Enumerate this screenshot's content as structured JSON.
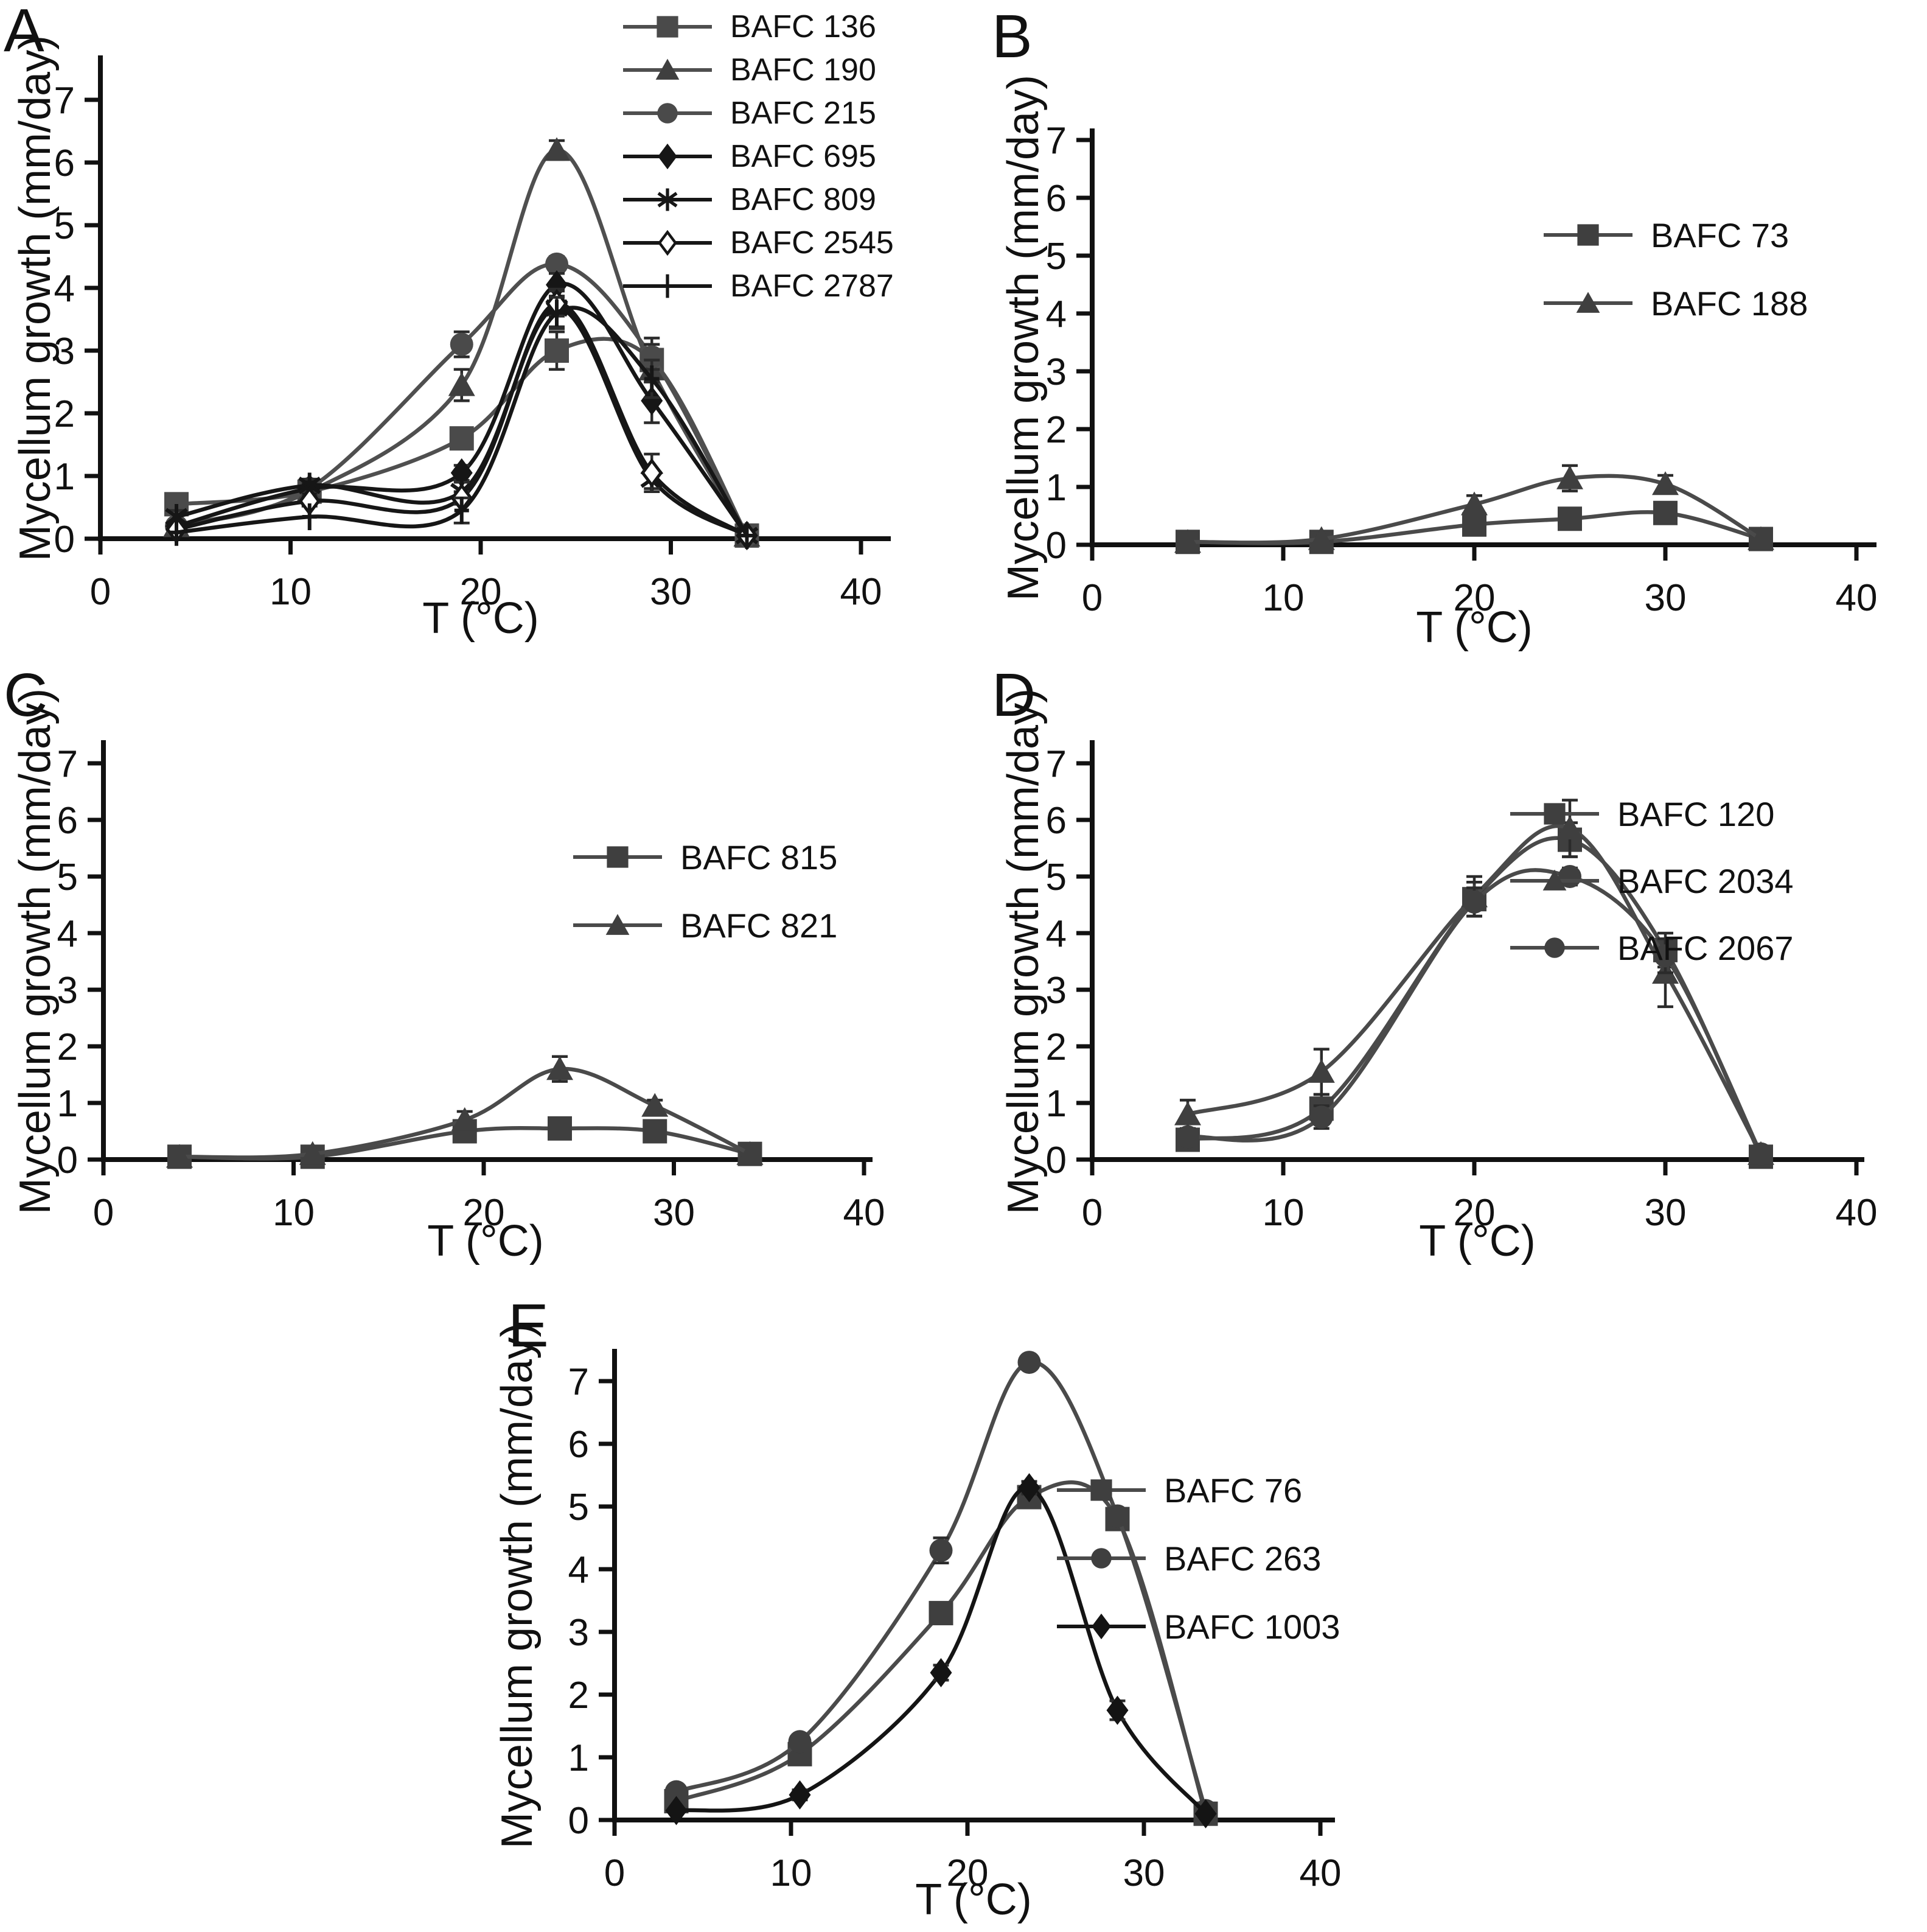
{
  "chart_data": [
    {
      "type": "line",
      "panel": "A",
      "xlabel": "T (°C)",
      "ylabel": "Mycellum growth (mm/day)",
      "xlim": [
        0,
        40
      ],
      "ylim": [
        0,
        7
      ],
      "x_ticks": [
        0,
        10,
        20,
        30,
        40
      ],
      "y_ticks": [
        0,
        1,
        2,
        3,
        4,
        5,
        6,
        7
      ],
      "grid": false,
      "legend_position": "top-right",
      "axis_color": "#111111",
      "x": [
        4,
        11,
        19,
        24,
        29,
        34
      ],
      "series": [
        {
          "name": "BAFC 136",
          "marker": "square",
          "color": "#4a4a4a",
          "line_color": "#4f4f4f",
          "values": [
            0.55,
            0.75,
            1.6,
            3.0,
            2.85,
            0.05
          ],
          "errors": [
            0.15,
            0.08,
            0.15,
            0.3,
            0.35,
            0.03
          ]
        },
        {
          "name": "BAFC 190",
          "marker": "triangle",
          "color": "#3f3f3f",
          "line_color": "#4f4f4f",
          "values": [
            0.2,
            0.75,
            2.45,
            6.2,
            2.7,
            0.05
          ],
          "errors": [
            0.05,
            0.08,
            0.25,
            0.15,
            0.2,
            0.03
          ]
        },
        {
          "name": "BAFC 215",
          "marker": "circle",
          "color": "#4a4a4a",
          "line_color": "#4f4f4f",
          "values": [
            0.2,
            0.8,
            3.1,
            4.38,
            2.9,
            0.05
          ],
          "errors": [
            0.05,
            0.1,
            0.2,
            0.12,
            0.2,
            0.03
          ]
        },
        {
          "name": "BAFC 695",
          "marker": "diamond",
          "color": "#161616",
          "line_color": "#161616",
          "values": [
            0.2,
            0.8,
            1.05,
            4.05,
            2.2,
            0.05
          ],
          "errors": [
            0.05,
            0.08,
            0.12,
            0.18,
            0.35,
            0.03
          ]
        },
        {
          "name": "BAFC 809",
          "marker": "asterisk",
          "color": "#161616",
          "line_color": "#161616",
          "values": [
            0.35,
            0.85,
            0.75,
            3.68,
            0.95,
            0.05
          ],
          "errors": [
            0.1,
            0.1,
            0.15,
            0.3,
            0.15,
            0.03
          ]
        },
        {
          "name": "BAFC 2545",
          "marker": "diamond-open",
          "color": "#161616",
          "line_color": "#161616",
          "values": [
            0.15,
            0.6,
            0.65,
            3.75,
            1.05,
            0.05
          ],
          "errors": [
            0.05,
            0.08,
            0.1,
            0.2,
            0.3,
            0.03
          ]
        },
        {
          "name": "BAFC 2787",
          "marker": "plus",
          "color": "#161616",
          "line_color": "#161616",
          "values": [
            0.1,
            0.35,
            0.45,
            3.6,
            2.55,
            0.05
          ],
          "errors": [
            0.04,
            0.06,
            0.2,
            0.25,
            0.3,
            0.03
          ]
        }
      ]
    },
    {
      "type": "line",
      "panel": "B",
      "xlabel": "T (°C)",
      "ylabel": "Mycellum growth (mm/day)",
      "xlim": [
        0,
        40
      ],
      "ylim": [
        0,
        7
      ],
      "x_ticks": [
        0,
        10,
        20,
        30,
        40
      ],
      "y_ticks": [
        0,
        1,
        2,
        3,
        4,
        5,
        6,
        7
      ],
      "grid": false,
      "legend_position": "right",
      "axis_color": "#111111",
      "x": [
        5,
        12,
        20,
        25,
        30,
        35
      ],
      "series": [
        {
          "name": "BAFC 73",
          "marker": "square",
          "color": "#3f3f3f",
          "line_color": "#4a4a4a",
          "values": [
            0.05,
            0.05,
            0.35,
            0.45,
            0.55,
            0.1
          ],
          "errors": [
            0.02,
            0.03,
            0.12,
            0.1,
            0.15,
            0.04
          ]
        },
        {
          "name": "BAFC 188",
          "marker": "triangle",
          "color": "#3f3f3f",
          "line_color": "#4a4a4a",
          "values": [
            0.05,
            0.1,
            0.7,
            1.15,
            1.05,
            0.1
          ],
          "errors": [
            0.02,
            0.05,
            0.15,
            0.22,
            0.15,
            0.04
          ]
        }
      ]
    },
    {
      "type": "line",
      "panel": "C",
      "xlabel": "T (°C)",
      "ylabel": "Mycellum growth (mm/day)",
      "xlim": [
        0,
        40
      ],
      "ylim": [
        0,
        7
      ],
      "x_ticks": [
        0,
        10,
        20,
        30,
        40
      ],
      "y_ticks": [
        0,
        1,
        2,
        3,
        4,
        5,
        6,
        7
      ],
      "grid": false,
      "legend_position": "right",
      "axis_color": "#111111",
      "x": [
        4,
        11,
        19,
        24,
        29,
        34
      ],
      "series": [
        {
          "name": "BAFC 815",
          "marker": "square",
          "color": "#3f3f3f",
          "line_color": "#4a4a4a",
          "values": [
            0.05,
            0.05,
            0.5,
            0.55,
            0.5,
            0.1
          ],
          "errors": [
            0.03,
            0.05,
            0.12,
            0.15,
            0.12,
            0.05
          ]
        },
        {
          "name": "BAFC 821",
          "marker": "triangle",
          "color": "#3f3f3f",
          "line_color": "#4a4a4a",
          "values": [
            0.05,
            0.1,
            0.7,
            1.6,
            0.95,
            0.1
          ],
          "errors": [
            0.03,
            0.05,
            0.15,
            0.22,
            0.1,
            0.05
          ]
        }
      ]
    },
    {
      "type": "line",
      "panel": "D",
      "xlabel": "T (°C)",
      "ylabel": "Mycellum growth (mm/day)",
      "xlim": [
        0,
        40
      ],
      "ylim": [
        0,
        7
      ],
      "x_ticks": [
        0,
        10,
        20,
        30,
        40
      ],
      "y_ticks": [
        0,
        1,
        2,
        3,
        4,
        5,
        6,
        7
      ],
      "grid": false,
      "legend_position": "top-right",
      "axis_color": "#111111",
      "x": [
        5,
        12,
        20,
        25,
        30,
        35
      ],
      "series": [
        {
          "name": "BAFC 120",
          "marker": "square",
          "color": "#3f3f3f",
          "line_color": "#4a4a4a",
          "values": [
            0.35,
            0.9,
            4.6,
            5.65,
            3.7,
            0.05
          ],
          "errors": [
            0.1,
            0.25,
            0.3,
            0.3,
            0.3,
            0.04
          ]
        },
        {
          "name": "BAFC 2034",
          "marker": "triangle",
          "color": "#3f3f3f",
          "line_color": "#4a4a4a",
          "values": [
            0.8,
            1.55,
            4.65,
            5.85,
            3.3,
            0.1
          ],
          "errors": [
            0.25,
            0.4,
            0.35,
            0.5,
            0.6,
            0.05
          ]
        },
        {
          "name": "BAFC 2067",
          "marker": "circle",
          "color": "#3f3f3f",
          "line_color": "#4a4a4a",
          "values": [
            0.4,
            0.75,
            4.55,
            5.0,
            3.6,
            0.1
          ],
          "errors": [
            0.1,
            0.2,
            0.25,
            0.15,
            0.3,
            0.05
          ]
        }
      ]
    },
    {
      "type": "line",
      "panel": "E",
      "xlabel": "T (°C)",
      "ylabel": "Mycellum growth (mm/day)",
      "xlim": [
        0,
        40
      ],
      "ylim": [
        0,
        7
      ],
      "x_ticks": [
        0,
        10,
        20,
        30,
        40
      ],
      "y_ticks": [
        0,
        1,
        2,
        3,
        4,
        5,
        6,
        7
      ],
      "grid": false,
      "legend_position": "top-right",
      "axis_color": "#111111",
      "x": [
        3.5,
        10.5,
        18.5,
        23.5,
        28.5,
        33.5
      ],
      "series": [
        {
          "name": "BAFC 76",
          "marker": "square",
          "color": "#3f3f3f",
          "line_color": "#4a4a4a",
          "values": [
            0.3,
            1.05,
            3.3,
            5.15,
            4.8,
            0.1
          ],
          "errors": [
            0.08,
            0.15,
            0.15,
            0.1,
            0.15,
            0.05
          ]
        },
        {
          "name": "BAFC 263",
          "marker": "circle",
          "color": "#3f3f3f",
          "line_color": "#4a4a4a",
          "values": [
            0.45,
            1.25,
            4.3,
            7.3,
            4.85,
            0.15
          ],
          "errors": [
            0.08,
            0.1,
            0.2,
            0.08,
            0.1,
            0.05
          ]
        },
        {
          "name": "BAFC 1003",
          "marker": "diamond",
          "color": "#141414",
          "line_color": "#141414",
          "values": [
            0.15,
            0.4,
            2.35,
            5.3,
            1.75,
            0.1
          ],
          "errors": [
            0.05,
            0.08,
            0.12,
            0.1,
            0.15,
            0.05
          ]
        }
      ]
    }
  ]
}
